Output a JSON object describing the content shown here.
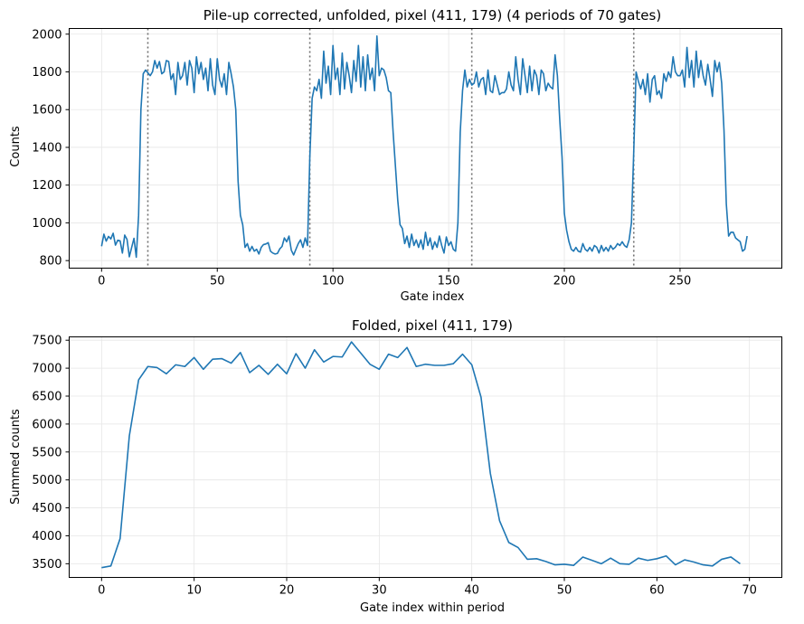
{
  "chart_data": [
    {
      "type": "line",
      "title": "Pile-up corrected, unfolded, pixel (411, 179)  (4 periods of 70 gates)",
      "xlabel": "Gate index",
      "ylabel": "Counts",
      "xlim": [
        -14,
        294
      ],
      "ylim": [
        760,
        2030
      ],
      "xticks": [
        0,
        50,
        100,
        150,
        200,
        250
      ],
      "yticks": [
        800,
        1000,
        1200,
        1400,
        1600,
        1800,
        2000
      ],
      "grid": true,
      "color": "#1f77b4",
      "vlines": [
        20,
        90,
        160,
        230
      ],
      "vline_color": "#707070",
      "x_start": 0,
      "y": [
        876,
        940,
        903,
        928,
        915,
        945,
        882,
        908,
        905,
        840,
        935,
        912,
        820,
        870,
        918,
        818,
        1040,
        1600,
        1790,
        1810,
        1795,
        1780,
        1800,
        1860,
        1820,
        1855,
        1790,
        1800,
        1860,
        1855,
        1760,
        1790,
        1680,
        1850,
        1760,
        1780,
        1850,
        1730,
        1860,
        1820,
        1690,
        1880,
        1790,
        1850,
        1760,
        1820,
        1700,
        1870,
        1730,
        1680,
        1870,
        1760,
        1720,
        1790,
        1680,
        1850,
        1790,
        1720,
        1600,
        1220,
        1040,
        990,
        870,
        890,
        850,
        875,
        850,
        860,
        835,
        870,
        885,
        888,
        895,
        850,
        840,
        835,
        838,
        862,
        875,
        920,
        900,
        930,
        855,
        830,
        860,
        890,
        910,
        870,
        920,
        880,
        1350,
        1660,
        1720,
        1700,
        1760,
        1660,
        1910,
        1740,
        1830,
        1680,
        1940,
        1760,
        1820,
        1680,
        1900,
        1710,
        1850,
        1780,
        1690,
        1860,
        1750,
        1940,
        1720,
        1880,
        1700,
        1890,
        1760,
        1820,
        1700,
        1990,
        1780,
        1820,
        1810,
        1770,
        1700,
        1690,
        1480,
        1300,
        1120,
        990,
        970,
        890,
        930,
        870,
        940,
        880,
        910,
        870,
        910,
        860,
        950,
        880,
        920,
        860,
        900,
        870,
        930,
        880,
        840,
        925,
        880,
        900,
        860,
        850,
        1000,
        1480,
        1700,
        1810,
        1720,
        1760,
        1730,
        1740,
        1800,
        1720,
        1760,
        1770,
        1680,
        1810,
        1700,
        1690,
        1780,
        1730,
        1680,
        1690,
        1690,
        1710,
        1800,
        1730,
        1700,
        1880,
        1760,
        1680,
        1870,
        1780,
        1690,
        1830,
        1700,
        1810,
        1780,
        1680,
        1810,
        1790,
        1700,
        1740,
        1720,
        1710,
        1890,
        1780,
        1550,
        1350,
        1050,
        960,
        900,
        860,
        850,
        870,
        850,
        845,
        890,
        860,
        850,
        870,
        850,
        880,
        870,
        840,
        880,
        850,
        870,
        850,
        880,
        860,
        870,
        890,
        880,
        900,
        880,
        870,
        910,
        1000,
        1380,
        1800,
        1750,
        1710,
        1760,
        1680,
        1790,
        1640,
        1760,
        1780,
        1680,
        1700,
        1660,
        1790,
        1750,
        1800,
        1770,
        1880,
        1800,
        1780,
        1780,
        1810,
        1720,
        1930,
        1770,
        1860,
        1720,
        1910,
        1770,
        1860,
        1780,
        1730,
        1840,
        1760,
        1670,
        1860,
        1800,
        1850,
        1740,
        1490,
        1100,
        930,
        950,
        950,
        920,
        910,
        900,
        850,
        860,
        930
      ]
    },
    {
      "type": "line",
      "title": "Folded, pixel (411, 179)",
      "xlabel": "Gate index within period",
      "ylabel": "Summed counts",
      "xlim": [
        -3.5,
        73.5
      ],
      "ylim": [
        3255,
        7560
      ],
      "xticks": [
        0,
        10,
        20,
        30,
        40,
        50,
        60,
        70
      ],
      "yticks": [
        3500,
        4000,
        4500,
        5000,
        5500,
        6000,
        6500,
        7000,
        7500
      ],
      "grid": true,
      "color": "#1f77b4",
      "x_start": 0,
      "y": [
        3430,
        3460,
        3950,
        5790,
        6790,
        7030,
        7010,
        6900,
        7060,
        7030,
        7190,
        6980,
        7160,
        7170,
        7090,
        7280,
        6920,
        7050,
        6890,
        7070,
        6900,
        7260,
        7000,
        7330,
        7110,
        7210,
        7200,
        7470,
        7270,
        7070,
        6980,
        7250,
        7190,
        7370,
        7030,
        7070,
        7050,
        7050,
        7080,
        7250,
        7060,
        6480,
        5120,
        4270,
        3880,
        3790,
        3580,
        3590,
        3540,
        3480,
        3490,
        3470,
        3620,
        3560,
        3500,
        3600,
        3500,
        3490,
        3600,
        3560,
        3590,
        3640,
        3480,
        3570,
        3530,
        3480,
        3460,
        3580,
        3620,
        3500
      ]
    }
  ]
}
